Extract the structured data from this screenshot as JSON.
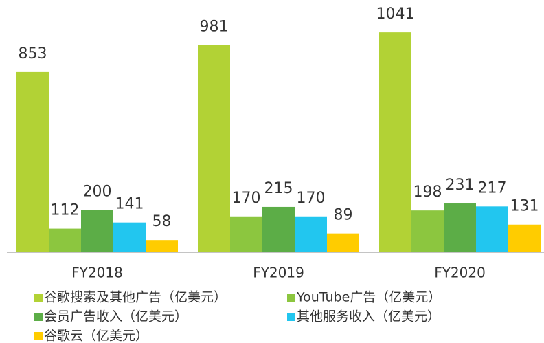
{
  "chart_data": {
    "type": "bar",
    "categories": [
      "FY2018",
      "FY2019",
      "FY2020"
    ],
    "series": [
      {
        "name": "谷歌搜索及其他广告（亿美元）",
        "color": "#b2d235",
        "values": [
          853,
          981,
          1041
        ]
      },
      {
        "name": "YouTube广告（亿美元）",
        "color": "#8cc63f",
        "values": [
          112,
          170,
          198
        ]
      },
      {
        "name": "会员广告收入（亿美元）",
        "color": "#5cad47",
        "values": [
          200,
          215,
          231
        ]
      },
      {
        "name": "其他服务收入（亿美元）",
        "color": "#22c6ef",
        "values": [
          141,
          170,
          217
        ]
      },
      {
        "name": "谷歌云（亿美元）",
        "color": "#ffcc00",
        "values": [
          58,
          89,
          131
        ]
      }
    ],
    "ylim": [
      0,
      1100
    ]
  }
}
